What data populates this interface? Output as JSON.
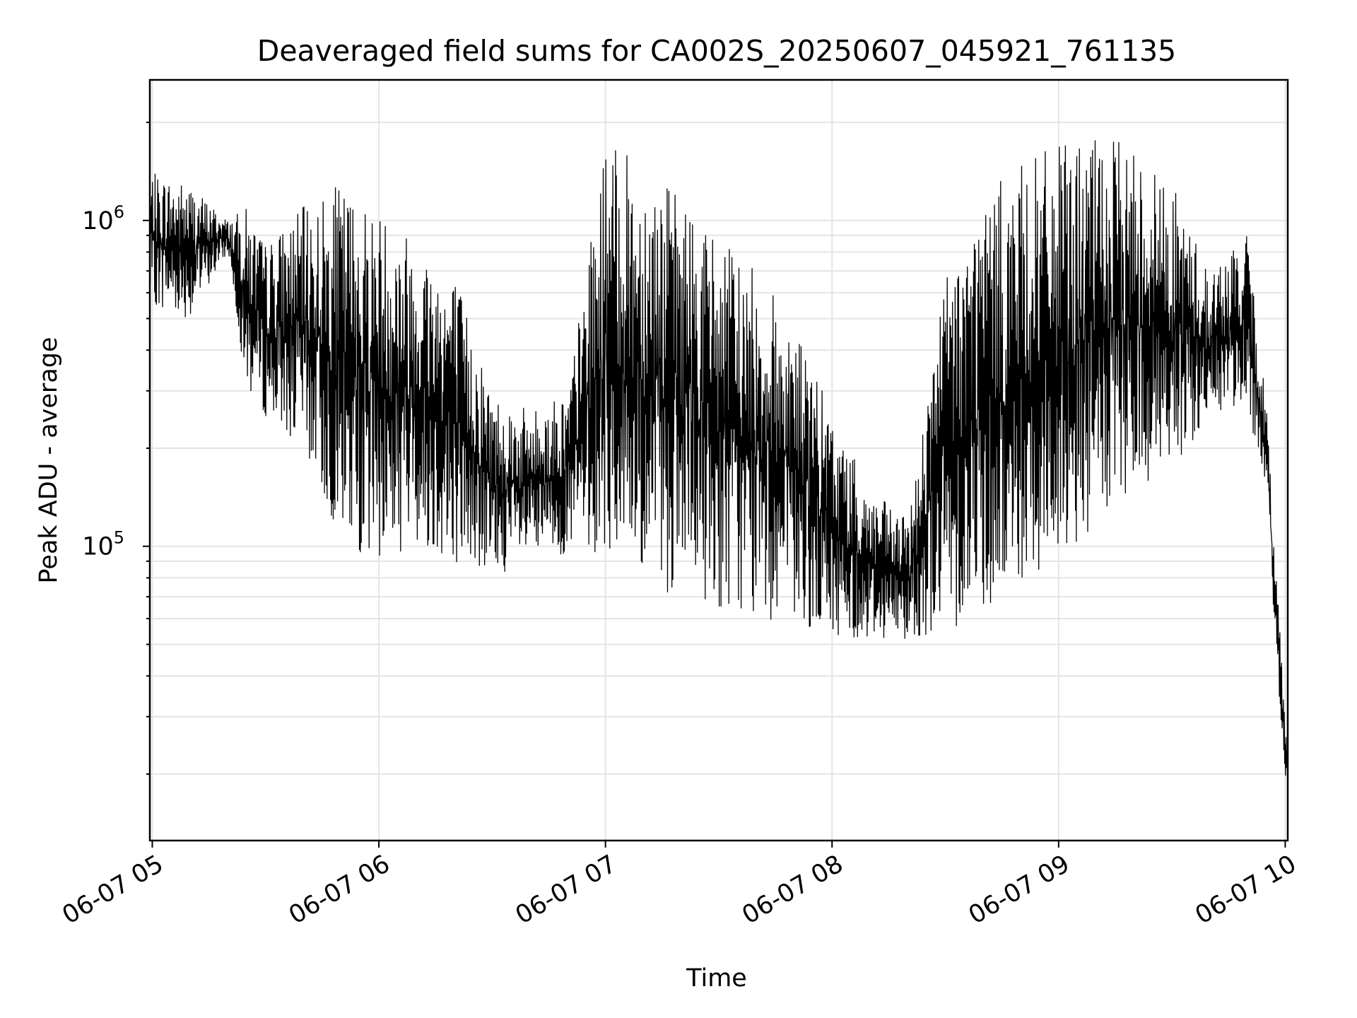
{
  "chart_data": {
    "type": "line",
    "title": "Deaveraged field sums for CA002S_20250607_045921_761135",
    "xlabel": "Time",
    "ylabel": "Peak ADU - average",
    "yscale": "log",
    "grid": true,
    "legend": "none",
    "line_color": "#000000",
    "grid_color": "#e4e4e4",
    "xlim": [
      "2025-06-07 04:59:21",
      "2025-06-07 10:00:40"
    ],
    "ylim": [
      12500,
      2700000
    ],
    "x_ticks": [
      "06-07 05",
      "06-07 06",
      "06-07 07",
      "06-07 08",
      "06-07 09",
      "06-07 10"
    ],
    "y_ticks": [
      {
        "base": "10",
        "exp": "5",
        "value": 100000
      },
      {
        "base": "10",
        "exp": "6",
        "value": 1000000
      }
    ],
    "envelope": {
      "time": [
        "05:00",
        "05:10",
        "05:20",
        "05:25",
        "05:30",
        "05:40",
        "05:50",
        "06:00",
        "06:10",
        "06:20",
        "06:30",
        "06:40",
        "06:50",
        "07:00",
        "07:10",
        "07:20",
        "07:30",
        "07:40",
        "07:50",
        "08:00",
        "08:10",
        "08:20",
        "08:30",
        "08:40",
        "08:50",
        "09:00",
        "09:10",
        "09:20",
        "09:30",
        "09:40",
        "09:45",
        "09:50",
        "09:55",
        "10:00"
      ],
      "low": [
        550000,
        500000,
        800000,
        300000,
        250000,
        200000,
        100000,
        90000,
        100000,
        90000,
        80000,
        90000,
        95000,
        95000,
        75000,
        70000,
        65000,
        60000,
        58000,
        52000,
        52000,
        52000,
        55000,
        62000,
        72000,
        90000,
        110000,
        140000,
        170000,
        240000,
        260000,
        280000,
        130000,
        19000
      ],
      "high": [
        1400000,
        1300000,
        1000000,
        1100000,
        850000,
        1100000,
        1300000,
        1100000,
        900000,
        700000,
        300000,
        260000,
        300000,
        1700000,
        1500000,
        1200000,
        900000,
        700000,
        500000,
        250000,
        150000,
        120000,
        700000,
        1200000,
        1500000,
        1700000,
        1800000,
        1700000,
        1300000,
        700000,
        800000,
        900000,
        280000,
        30000
      ]
    }
  }
}
